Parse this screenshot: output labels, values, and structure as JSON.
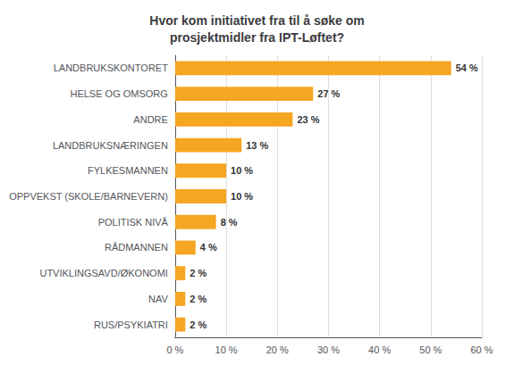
{
  "chart_data": {
    "type": "bar",
    "orientation": "horizontal",
    "title": "Hvor kom initiativet fra til å søke om\nprosjektmidler fra IPT-Løftet?",
    "categories": [
      "RUS/PSYKIATRI",
      "NAV",
      "UTVIKLINGSAVD/ØKONOMI",
      "RÅDMANNEN",
      "POLITISK NIVÅ",
      "OPPVEKST (SKOLE/BARNEVERN)",
      "FYLKESMANNEN",
      "LANDBRUKSNÆRINGEN",
      "ANDRE",
      "HELSE OG OMSORG",
      "LANDBRUKSKONTORET"
    ],
    "values": [
      2,
      2,
      2,
      4,
      8,
      10,
      10,
      13,
      23,
      27,
      54
    ],
    "value_labels": [
      "2 %",
      "2 %",
      "2 %",
      "4 %",
      "8 %",
      "10 %",
      "10 %",
      "13 %",
      "23 %",
      "27 %",
      "54 %"
    ],
    "data_labels": true,
    "color": "#F5A623",
    "xlim": [
      0,
      60
    ],
    "xticks": [
      {
        "value": 0,
        "label": "0 %"
      },
      {
        "value": 10,
        "label": "10 %"
      },
      {
        "value": 20,
        "label": "20 %"
      },
      {
        "value": 30,
        "label": "30 %"
      },
      {
        "value": 40,
        "label": "40 %"
      },
      {
        "value": 50,
        "label": "50 %"
      },
      {
        "value": 60,
        "label": "60 %"
      }
    ],
    "grid": true
  }
}
